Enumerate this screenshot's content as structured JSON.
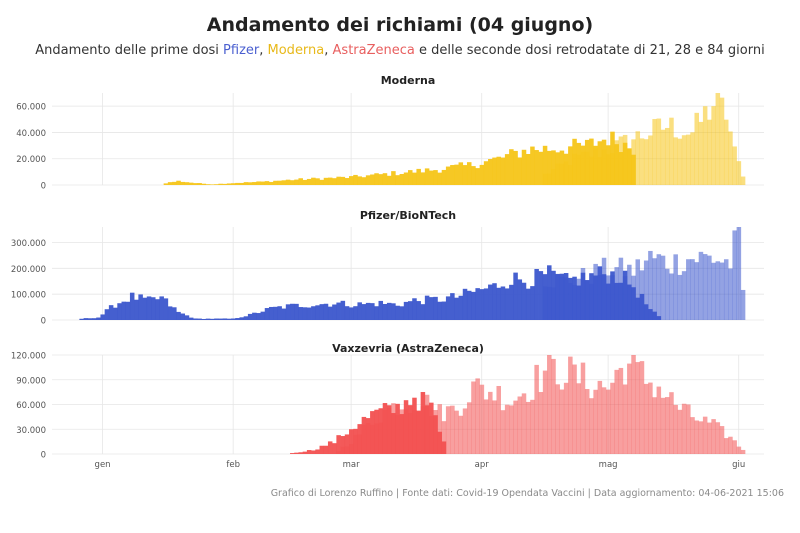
{
  "title": "Andamento dei richiami (04 giugno)",
  "subtitle": {
    "prefix": "Andamento delle prime dosi ",
    "pfizer": "Pfizer",
    "sep1": ", ",
    "moderna": "Moderna",
    "sep2": ", ",
    "astrazeneca": "AstraZeneca",
    "suffix": " e delle seconde dosi retrodatate di 21, 28 e 84 giorni"
  },
  "caption": "Grafico di Lorenzo Ruffino | Fonte dati: Covid-19 Opendata Vaccini | Data aggiornamento: 04-06-2021 15:06",
  "chart_data": {
    "type": "bar",
    "x_axis": {
      "ticks": [
        {
          "label": "gen",
          "day": 0
        },
        {
          "label": "feb",
          "day": 31
        },
        {
          "label": "mar",
          "day": 59
        },
        {
          "label": "apr",
          "day": 90
        },
        {
          "label": "mag",
          "day": 120
        },
        {
          "label": "giu",
          "day": 151
        }
      ],
      "range_days": [
        -12,
        157
      ]
    },
    "panels": [
      {
        "name": "Moderna",
        "color": "#f5c518",
        "ylim": [
          0,
          70000
        ],
        "yticks": [
          0,
          20000,
          40000,
          60000
        ],
        "ytick_labels": [
          "0",
          "20.000",
          "40.000",
          "60.000"
        ],
        "first_dose_keypoints": [
          [
            14,
            0
          ],
          [
            14,
            1000
          ],
          [
            18,
            3000
          ],
          [
            22,
            1500
          ],
          [
            26,
            500
          ],
          [
            31,
            1500
          ],
          [
            38,
            2500
          ],
          [
            45,
            4000
          ],
          [
            52,
            5000
          ],
          [
            59,
            6000
          ],
          [
            66,
            8000
          ],
          [
            73,
            10000
          ],
          [
            80,
            12000
          ],
          [
            87,
            15000
          ],
          [
            94,
            20000
          ],
          [
            101,
            27000
          ],
          [
            108,
            28000
          ],
          [
            115,
            30000
          ],
          [
            120,
            36000
          ],
          [
            126,
            28000
          ]
        ],
        "recall_start": 105,
        "recall_keypoints": [
          [
            105,
            8000
          ],
          [
            112,
            20000
          ],
          [
            120,
            27000
          ],
          [
            128,
            38000
          ],
          [
            134,
            45000
          ],
          [
            140,
            40000
          ],
          [
            145,
            62000
          ],
          [
            148,
            55000
          ],
          [
            150,
            25000
          ],
          [
            152,
            8000
          ]
        ]
      },
      {
        "name": "Pfizer/BioNTech",
        "color": "#3b56cc",
        "ylim": [
          0,
          360000
        ],
        "yticks": [
          0,
          100000,
          200000,
          300000
        ],
        "ytick_labels": [
          "0",
          "100.000",
          "200.000",
          "300.000"
        ],
        "first_dose_keypoints": [
          [
            -5,
            5000
          ],
          [
            -1,
            10000
          ],
          [
            3,
            60000
          ],
          [
            7,
            90000
          ],
          [
            11,
            75000
          ],
          [
            14,
            85000
          ],
          [
            18,
            30000
          ],
          [
            22,
            5000
          ],
          [
            26,
            5000
          ],
          [
            31,
            5000
          ],
          [
            35,
            20000
          ],
          [
            40,
            45000
          ],
          [
            45,
            55000
          ],
          [
            50,
            60000
          ],
          [
            55,
            65000
          ],
          [
            60,
            60000
          ],
          [
            66,
            65000
          ],
          [
            70,
            60000
          ],
          [
            74,
            75000
          ],
          [
            80,
            80000
          ],
          [
            84,
            90000
          ],
          [
            88,
            110000
          ],
          [
            93,
            130000
          ],
          [
            97,
            160000
          ],
          [
            101,
            155000
          ],
          [
            106,
            175000
          ],
          [
            110,
            150000
          ],
          [
            115,
            165000
          ],
          [
            119,
            180000
          ],
          [
            123,
            170000
          ],
          [
            126,
            130000
          ],
          [
            130,
            40000
          ],
          [
            133,
            0
          ]
        ],
        "recall_start": 105,
        "recall_keypoints": [
          [
            105,
            160000
          ],
          [
            110,
            150000
          ],
          [
            115,
            170000
          ],
          [
            120,
            200000
          ],
          [
            126,
            190000
          ],
          [
            130,
            240000
          ],
          [
            135,
            220000
          ],
          [
            140,
            240000
          ],
          [
            145,
            240000
          ],
          [
            149,
            220000
          ],
          [
            151,
            350000
          ],
          [
            152,
            110000
          ]
        ]
      },
      {
        "name": "Vaxzevria (AstraZeneca)",
        "color": "#f25050",
        "ylim": [
          0,
          120000
        ],
        "yticks": [
          0,
          30000,
          60000,
          90000,
          120000
        ],
        "ytick_labels": [
          "0",
          "30.000",
          "60.000",
          "90.000",
          "120.000"
        ],
        "first_dose_keypoints": [
          [
            44,
            0
          ],
          [
            45,
            1000
          ],
          [
            50,
            5000
          ],
          [
            55,
            15000
          ],
          [
            60,
            35000
          ],
          [
            65,
            50000
          ],
          [
            70,
            55000
          ],
          [
            74,
            70000
          ],
          [
            78,
            55000
          ],
          [
            82,
            0
          ]
        ],
        "recall_start": 55,
        "recall_keypoints": [
          [
            55,
            0
          ],
          [
            60,
            20000
          ],
          [
            65,
            45000
          ],
          [
            70,
            60000
          ],
          [
            76,
            65000
          ],
          [
            80,
            50000
          ],
          [
            84,
            55000
          ],
          [
            88,
            80000
          ],
          [
            93,
            75000
          ],
          [
            97,
            65000
          ],
          [
            101,
            80000
          ],
          [
            105,
            100000
          ],
          [
            110,
            100000
          ],
          [
            116,
            85000
          ],
          [
            120,
            80000
          ],
          [
            124,
            110000
          ],
          [
            128,
            95000
          ],
          [
            132,
            80000
          ],
          [
            136,
            60000
          ],
          [
            140,
            45000
          ],
          [
            145,
            35000
          ],
          [
            149,
            20000
          ],
          [
            152,
            5000
          ]
        ]
      }
    ]
  }
}
